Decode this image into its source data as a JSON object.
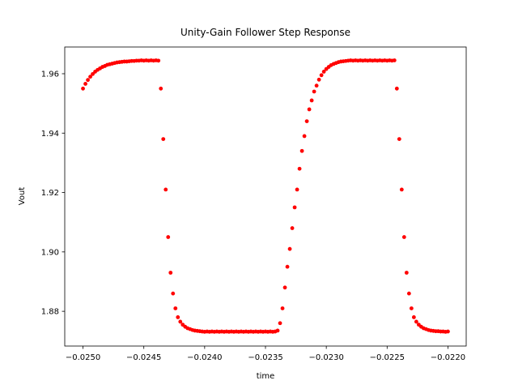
{
  "chart_data": {
    "type": "scatter",
    "title": "Unity-Gain Follower Step Response",
    "x_label": "time",
    "y_label": "Vout",
    "color": "#ff0000",
    "x": [
      -0.025,
      -0.02498,
      -0.02496,
      -0.02494,
      -0.02492,
      -0.0249,
      -0.02488,
      -0.02486,
      -0.02484,
      -0.02482,
      -0.0248,
      -0.02478,
      -0.02476,
      -0.02474,
      -0.02472,
      -0.0247,
      -0.02468,
      -0.02466,
      -0.02464,
      -0.02462,
      -0.0246,
      -0.02458,
      -0.02456,
      -0.02454,
      -0.02452,
      -0.0245,
      -0.02448,
      -0.02446,
      -0.02444,
      -0.02442,
      -0.0244,
      -0.02438,
      -0.02436,
      -0.02434,
      -0.02432,
      -0.0243,
      -0.02428,
      -0.02426,
      -0.02424,
      -0.02422,
      -0.0242,
      -0.02418,
      -0.02416,
      -0.02414,
      -0.02412,
      -0.0241,
      -0.02408,
      -0.02406,
      -0.02404,
      -0.02402,
      -0.024,
      -0.02398,
      -0.02396,
      -0.02394,
      -0.02392,
      -0.0239,
      -0.02388,
      -0.02386,
      -0.02384,
      -0.02382,
      -0.0238,
      -0.02378,
      -0.02376,
      -0.02374,
      -0.02372,
      -0.0237,
      -0.02368,
      -0.02366,
      -0.02364,
      -0.02362,
      -0.0236,
      -0.02358,
      -0.02356,
      -0.02354,
      -0.02352,
      -0.0235,
      -0.02348,
      -0.02346,
      -0.02344,
      -0.02342,
      -0.0234,
      -0.02338,
      -0.02336,
      -0.02334,
      -0.02332,
      -0.0233,
      -0.02328,
      -0.02326,
      -0.02324,
      -0.02322,
      -0.0232,
      -0.02318,
      -0.02316,
      -0.02314,
      -0.02312,
      -0.0231,
      -0.02308,
      -0.02306,
      -0.02304,
      -0.02302,
      -0.023,
      -0.02298,
      -0.02296,
      -0.02294,
      -0.02292,
      -0.0229,
      -0.02288,
      -0.02286,
      -0.02284,
      -0.02282,
      -0.0228,
      -0.02278,
      -0.02276,
      -0.02274,
      -0.02272,
      -0.0227,
      -0.02268,
      -0.02266,
      -0.02264,
      -0.02262,
      -0.0226,
      -0.02258,
      -0.02256,
      -0.02254,
      -0.02252,
      -0.0225,
      -0.02248,
      -0.02246,
      -0.02244,
      -0.02242,
      -0.0224,
      -0.02238,
      -0.02236,
      -0.02234,
      -0.02232,
      -0.0223,
      -0.02228,
      -0.02226,
      -0.02224,
      -0.02222,
      -0.0222,
      -0.02218,
      -0.02216,
      -0.02214,
      -0.02212,
      -0.0221,
      -0.02208,
      -0.02206,
      -0.02204,
      -0.02202,
      -0.022
    ],
    "values": [
      1.955,
      1.9566,
      1.9579,
      1.959,
      1.9599,
      1.9607,
      1.9613,
      1.9618,
      1.9623,
      1.9626,
      1.963,
      1.9632,
      1.9634,
      1.9636,
      1.9638,
      1.9639,
      1.964,
      1.9641,
      1.9641,
      1.9642,
      1.9643,
      1.9643,
      1.9644,
      1.9644,
      1.9645,
      1.9644,
      1.9645,
      1.9644,
      1.9645,
      1.9644,
      1.9645,
      1.9644,
      1.955,
      1.938,
      1.921,
      1.905,
      1.893,
      1.886,
      1.881,
      1.878,
      1.8765,
      1.8755,
      1.8748,
      1.8743,
      1.874,
      1.8737,
      1.8735,
      1.8734,
      1.8733,
      1.8732,
      1.8731,
      1.8732,
      1.8731,
      1.8732,
      1.8731,
      1.8732,
      1.8731,
      1.8732,
      1.8731,
      1.8732,
      1.8731,
      1.8732,
      1.8731,
      1.8732,
      1.8731,
      1.8732,
      1.8731,
      1.8732,
      1.8731,
      1.8732,
      1.8731,
      1.8732,
      1.8731,
      1.8732,
      1.8731,
      1.8732,
      1.8731,
      1.8732,
      1.8731,
      1.8732,
      1.8735,
      1.876,
      1.881,
      1.888,
      1.895,
      1.901,
      1.908,
      1.915,
      1.921,
      1.928,
      1.934,
      1.939,
      1.944,
      1.948,
      1.951,
      1.954,
      1.956,
      1.958,
      1.9595,
      1.9607,
      1.9616,
      1.9623,
      1.9629,
      1.9633,
      1.9636,
      1.9639,
      1.9641,
      1.9642,
      1.9643,
      1.9644,
      1.9645,
      1.9644,
      1.9645,
      1.9644,
      1.9645,
      1.9644,
      1.9645,
      1.9644,
      1.9645,
      1.9644,
      1.9645,
      1.9644,
      1.9645,
      1.9644,
      1.9645,
      1.9644,
      1.9645,
      1.9644,
      1.9645,
      1.955,
      1.938,
      1.921,
      1.905,
      1.893,
      1.886,
      1.881,
      1.878,
      1.8765,
      1.8755,
      1.8748,
      1.8743,
      1.874,
      1.8737,
      1.8735,
      1.8734,
      1.8733,
      1.8733,
      1.8732,
      1.8732,
      1.8731,
      1.8732
    ],
    "xlim": [
      -0.02515,
      -0.02185
    ],
    "ylim": [
      1.8683,
      1.969
    ],
    "xticks": [
      {
        "value": -0.025,
        "label": "−0.0250"
      },
      {
        "value": -0.0245,
        "label": "−0.0245"
      },
      {
        "value": -0.024,
        "label": "−0.0240"
      },
      {
        "value": -0.0235,
        "label": "−0.0235"
      },
      {
        "value": -0.023,
        "label": "−0.0230"
      },
      {
        "value": -0.0225,
        "label": "−0.0225"
      },
      {
        "value": -0.022,
        "label": "−0.0220"
      }
    ],
    "yticks": [
      1.88,
      {
        "value": 1.9,
        "label": "1.90"
      },
      1.92,
      1.94,
      1.96
    ]
  }
}
